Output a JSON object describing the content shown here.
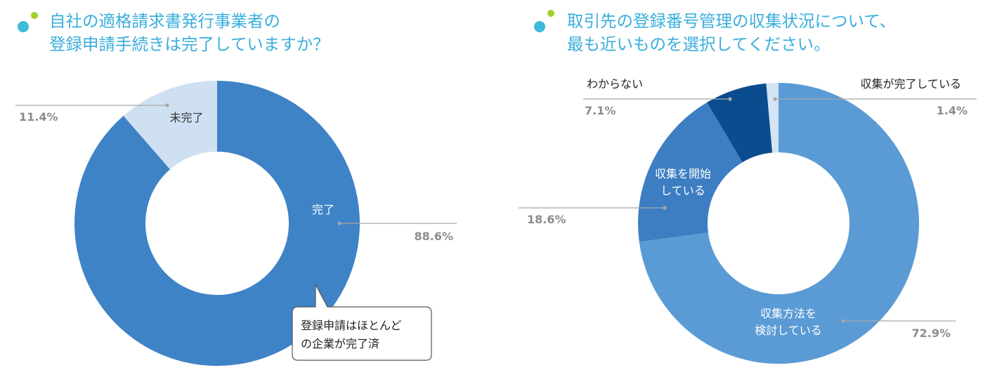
{
  "left": {
    "title_lines": [
      "自社の適格請求書発行事業者の",
      "登録申請手続きは完了していますか？"
    ],
    "callout_lines": [
      "登録申請はほとんど",
      "の企業が完了済"
    ]
  },
  "right": {
    "title_lines": [
      "取引先の登録番号管理の収集状況について、",
      "最も近いものを選択してください。"
    ]
  },
  "colors": {
    "title": "#3aaedc",
    "dot_primary": "#3dbbd8",
    "dot_accent": "#a2cf2e",
    "label_gray": "#8c8c8c",
    "leader_gray": "#a6a6a6"
  },
  "chart_data": [
    {
      "type": "pie",
      "donut": true,
      "title": "自社の適格請求書発行事業者の登録申請手続きは完了していますか？",
      "slices": [
        {
          "name": "完了",
          "value": 88.6,
          "label": "88.6%",
          "color": "#3f83c7"
        },
        {
          "name": "未完了",
          "value": 11.4,
          "label": "11.4%",
          "color": "#cfe0f2"
        }
      ]
    },
    {
      "type": "pie",
      "donut": true,
      "title": "取引先の登録番号管理の収集状況について、最も近いものを選択してください。",
      "slices": [
        {
          "name": "収集方法を検討している",
          "name_lines": [
            "収集方法を",
            "検討している"
          ],
          "value": 72.9,
          "label": "72.9%",
          "color": "#5b9bd5"
        },
        {
          "name": "収集を開始している",
          "name_lines": [
            "収集を開始",
            "している"
          ],
          "value": 18.6,
          "label": "18.6%",
          "color": "#3d7ec2"
        },
        {
          "name": "わからない",
          "name_lines": [
            "わからない"
          ],
          "value": 7.1,
          "label": "7.1%",
          "color": "#0b4c8e"
        },
        {
          "name": "収集が完了している",
          "name_lines": [
            "収集が完了している"
          ],
          "value": 1.4,
          "label": "1.4%",
          "color": "#d4e4f4"
        }
      ]
    }
  ]
}
